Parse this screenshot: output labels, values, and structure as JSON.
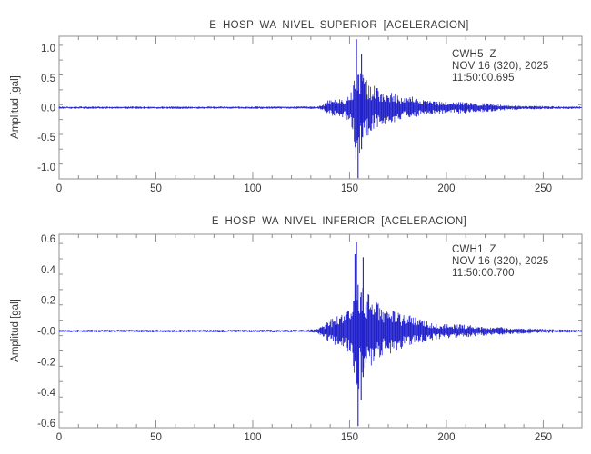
{
  "figure": {
    "background": "#ffffff",
    "axis_color": "#909090",
    "text_color": "#3a3a3a"
  },
  "chart_data": [
    {
      "type": "line",
      "subtype": "seismogram-acceleration-trace",
      "title": "E HOSP WA NIVEL SUPERIOR [ACELERACION]",
      "ylabel": "Amplitud [gal]",
      "annotation": {
        "station": "CWH5  Z",
        "date": "NOV 16 (320), 2025",
        "time": "11:50:00.695"
      },
      "trace_color": "#2222cc",
      "grid": false,
      "legend": "none",
      "xlim": [
        0,
        270
      ],
      "ylim": [
        -1.2,
        1.2
      ],
      "x_major_ticks": [
        0,
        50,
        100,
        150,
        200,
        250
      ],
      "x_tick_labels": [
        "0",
        "50",
        "100",
        "150",
        "200",
        "250"
      ],
      "x_minor_interval": 10,
      "y_major_ticks": [
        1.0,
        0.5,
        0.0,
        -0.5,
        -1.0
      ],
      "y_tick_labels": [
        "1.0",
        "0.5",
        "0.0",
        "-0.5",
        "-1.0"
      ],
      "y_minor_interval": 0.25,
      "noise_amplitude": 0.02,
      "event_start_x": 137,
      "peak_x": 154,
      "peak_value": 1.15,
      "trough_value": -1.19,
      "envelope": [
        [
          0,
          0.02
        ],
        [
          125,
          0.02
        ],
        [
          133,
          0.024
        ],
        [
          137,
          0.06
        ],
        [
          139,
          0.13
        ],
        [
          144,
          0.15
        ],
        [
          148,
          0.17
        ],
        [
          151,
          0.3
        ],
        [
          152.5,
          0.65
        ],
        [
          153.5,
          1.0
        ],
        [
          154.5,
          0.95
        ],
        [
          156,
          0.6
        ],
        [
          158,
          0.5
        ],
        [
          160,
          0.48
        ],
        [
          163,
          0.36
        ],
        [
          167,
          0.3
        ],
        [
          172,
          0.27
        ],
        [
          176,
          0.2
        ],
        [
          182,
          0.19
        ],
        [
          188,
          0.13
        ],
        [
          195,
          0.11
        ],
        [
          202,
          0.09
        ],
        [
          208,
          0.11
        ],
        [
          214,
          0.07
        ],
        [
          221,
          0.08
        ],
        [
          228,
          0.05
        ],
        [
          238,
          0.035
        ],
        [
          250,
          0.028
        ],
        [
          270,
          0.02
        ]
      ],
      "spikes": [
        [
          153.6,
          1.15,
          -0.6
        ],
        [
          154.4,
          0.55,
          -1.19
        ],
        [
          156.2,
          0.9,
          -0.7
        ]
      ],
      "seed": 42
    },
    {
      "type": "line",
      "subtype": "seismogram-acceleration-trace",
      "title": "E HOSP WA NIVEL INFERIOR [ACELERACION]",
      "ylabel": "Amplitud [gal]",
      "annotation": {
        "station": "CWH1  Z",
        "date": "NOV 16 (320), 2025",
        "time": "11:50:00.700"
      },
      "trace_color": "#2222cc",
      "grid": false,
      "legend": "none",
      "xlim": [
        0,
        270
      ],
      "ylim": [
        -0.63,
        0.63
      ],
      "x_major_ticks": [
        0,
        50,
        100,
        150,
        200,
        250
      ],
      "x_tick_labels": [
        "0",
        "50",
        "100",
        "150",
        "200",
        "250"
      ],
      "x_minor_interval": 10,
      "y_major_ticks": [
        0.6,
        0.4,
        0.2,
        0.0,
        -0.2,
        -0.4,
        -0.6
      ],
      "y_tick_labels": [
        "0.6",
        "0.4",
        "0.2",
        "-0.0",
        "-0.2",
        "-0.4",
        "-0.6"
      ],
      "y_minor_interval": 0.1,
      "noise_amplitude": 0.009,
      "event_start_x": 137,
      "peak_x": 154,
      "peak_value": 0.58,
      "trough_value": -0.62,
      "envelope": [
        [
          0,
          0.009
        ],
        [
          125,
          0.009
        ],
        [
          133,
          0.012
        ],
        [
          137,
          0.045
        ],
        [
          139,
          0.08
        ],
        [
          144,
          0.1
        ],
        [
          148,
          0.11
        ],
        [
          151,
          0.17
        ],
        [
          152.5,
          0.28
        ],
        [
          153.5,
          0.42
        ],
        [
          154.5,
          0.4
        ],
        [
          156,
          0.3
        ],
        [
          158,
          0.27
        ],
        [
          160,
          0.25
        ],
        [
          163,
          0.2
        ],
        [
          167,
          0.17
        ],
        [
          172,
          0.15
        ],
        [
          176,
          0.12
        ],
        [
          182,
          0.1
        ],
        [
          188,
          0.075
        ],
        [
          195,
          0.055
        ],
        [
          202,
          0.045
        ],
        [
          208,
          0.045
        ],
        [
          214,
          0.035
        ],
        [
          221,
          0.03
        ],
        [
          228,
          0.025
        ],
        [
          238,
          0.018
        ],
        [
          250,
          0.014
        ],
        [
          270,
          0.009
        ]
      ],
      "spikes": [
        [
          152.8,
          0.5,
          -0.2
        ],
        [
          153.6,
          0.58,
          -0.35
        ],
        [
          154.4,
          0.3,
          -0.62
        ],
        [
          156.0,
          0.25,
          -0.45
        ],
        [
          157.0,
          0.48,
          -0.3
        ]
      ],
      "seed": 1337
    }
  ]
}
